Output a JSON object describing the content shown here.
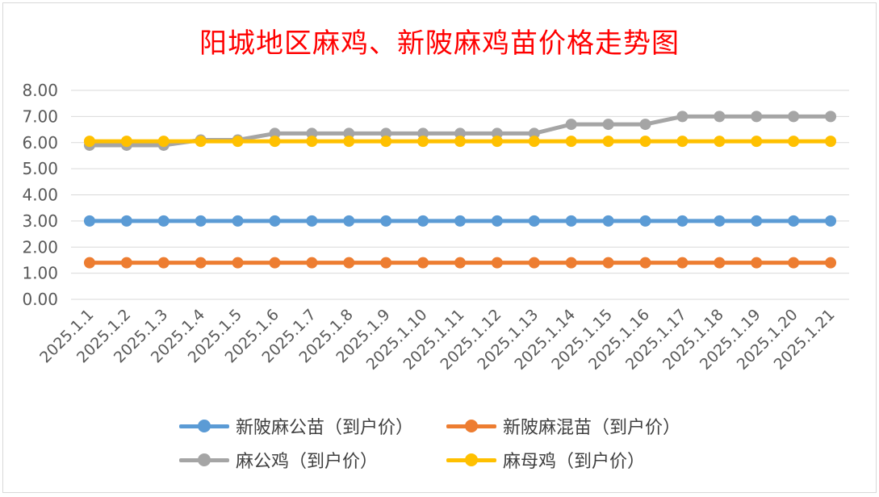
{
  "chart_data": {
    "type": "line",
    "title": "阳城地区麻鸡、新陂麻鸡苗价格走势图",
    "categories": [
      "2025.1.1",
      "2025.1.2",
      "2025.1.3",
      "2025.1.4",
      "2025.1.5",
      "2025.1.6",
      "2025.1.7",
      "2025.1.8",
      "2025.1.9",
      "2025.1.10",
      "2025.1.11",
      "2025.1.12",
      "2025.1.13",
      "2025.1.14",
      "2025.1.15",
      "2025.1.16",
      "2025.1.17",
      "2025.1.18",
      "2025.1.19",
      "2025.1.20",
      "2025.1.21"
    ],
    "ylim": [
      0,
      8
    ],
    "yticks": [
      "0.00",
      "1.00",
      "2.00",
      "3.00",
      "4.00",
      "5.00",
      "6.00",
      "7.00",
      "8.00"
    ],
    "grid": true,
    "legend_position": "bottom",
    "series": [
      {
        "name": "新陂麻公苗（到户价）",
        "color": "#5B9BD5",
        "values": [
          3.0,
          3.0,
          3.0,
          3.0,
          3.0,
          3.0,
          3.0,
          3.0,
          3.0,
          3.0,
          3.0,
          3.0,
          3.0,
          3.0,
          3.0,
          3.0,
          3.0,
          3.0,
          3.0,
          3.0,
          3.0
        ]
      },
      {
        "name": "新陂麻混苗（到户价）",
        "color": "#ED7D31",
        "values": [
          1.4,
          1.4,
          1.4,
          1.4,
          1.4,
          1.4,
          1.4,
          1.4,
          1.4,
          1.4,
          1.4,
          1.4,
          1.4,
          1.4,
          1.4,
          1.4,
          1.4,
          1.4,
          1.4,
          1.4,
          1.4
        ]
      },
      {
        "name": "麻公鸡（到户价）",
        "color": "#A5A5A5",
        "values": [
          5.9,
          5.9,
          5.9,
          6.1,
          6.1,
          6.35,
          6.35,
          6.35,
          6.35,
          6.35,
          6.35,
          6.35,
          6.35,
          6.7,
          6.7,
          6.7,
          7.0,
          7.0,
          7.0,
          7.0,
          7.0
        ]
      },
      {
        "name": "麻母鸡（到户价）",
        "color": "#FFC000",
        "values": [
          6.05,
          6.05,
          6.05,
          6.05,
          6.05,
          6.05,
          6.05,
          6.05,
          6.05,
          6.05,
          6.05,
          6.05,
          6.05,
          6.05,
          6.05,
          6.05,
          6.05,
          6.05,
          6.05,
          6.05,
          6.05
        ]
      }
    ]
  }
}
